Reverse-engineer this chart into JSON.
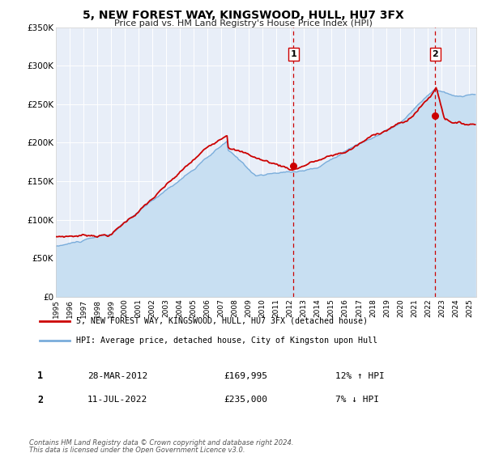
{
  "title": "5, NEW FOREST WAY, KINGSWOOD, HULL, HU7 3FX",
  "subtitle": "Price paid vs. HM Land Registry's House Price Index (HPI)",
  "ylim": [
    0,
    350000
  ],
  "yticks": [
    0,
    50000,
    100000,
    150000,
    200000,
    250000,
    300000,
    350000
  ],
  "ytick_labels": [
    "£0",
    "£50K",
    "£100K",
    "£150K",
    "£200K",
    "£250K",
    "£300K",
    "£350K"
  ],
  "xlim_start": 1995.0,
  "xlim_end": 2025.5,
  "xtick_years": [
    1995,
    1996,
    1997,
    1998,
    1999,
    2000,
    2001,
    2002,
    2003,
    2004,
    2005,
    2006,
    2007,
    2008,
    2009,
    2010,
    2011,
    2012,
    2013,
    2014,
    2015,
    2016,
    2017,
    2018,
    2019,
    2020,
    2021,
    2022,
    2023,
    2024,
    2025
  ],
  "sale1_date": 2012.23,
  "sale1_price": 169995,
  "sale1_label": "1",
  "sale1_date_str": "28-MAR-2012",
  "sale1_amount_str": "£169,995",
  "sale1_hpi_str": "12% ↑ HPI",
  "sale2_date": 2022.53,
  "sale2_price": 235000,
  "sale2_label": "2",
  "sale2_date_str": "11-JUL-2022",
  "sale2_amount_str": "£235,000",
  "sale2_hpi_str": "7% ↓ HPI",
  "property_color": "#cc0000",
  "hpi_color": "#7aaddb",
  "hpi_fill_color": "#c8dff2",
  "dashed_line_color": "#cc0000",
  "legend_label_property": "5, NEW FOREST WAY, KINGSWOOD, HULL, HU7 3FX (detached house)",
  "legend_label_hpi": "HPI: Average price, detached house, City of Kingston upon Hull",
  "footnote1": "Contains HM Land Registry data © Crown copyright and database right 2024.",
  "footnote2": "This data is licensed under the Open Government Licence v3.0.",
  "plot_bg_color": "#e8eef8",
  "grid_color": "#ffffff"
}
